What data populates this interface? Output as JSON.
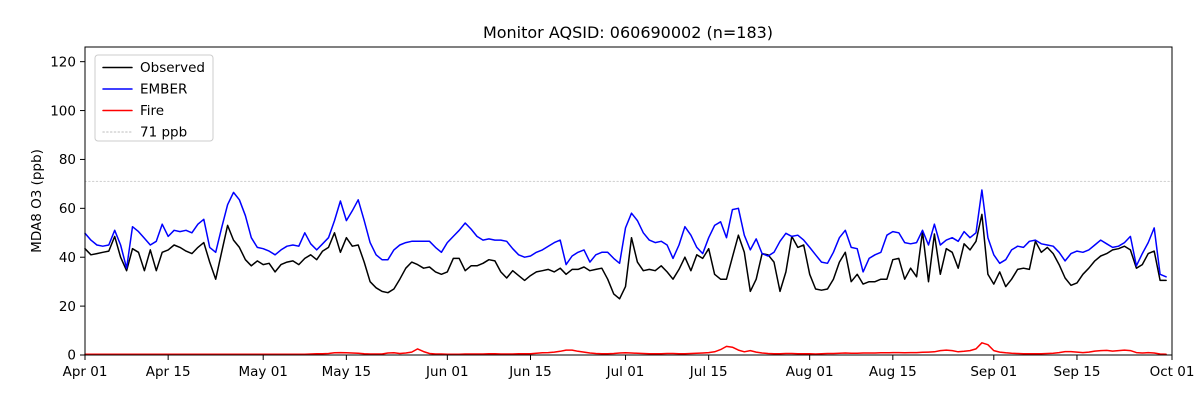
{
  "figure": {
    "title": "Monitor AQSID: 060690002 (n=183)"
  },
  "chart_data": {
    "type": "line",
    "title": "Monitor AQSID: 060690002 (n=183)",
    "xlabel": "",
    "ylabel": "MDA8 O3 (ppb)",
    "n_points": 183,
    "x_start": "Apr 01",
    "x_end": "Oct 01",
    "ylim": [
      0,
      126
    ],
    "yticks": [
      0,
      20,
      40,
      60,
      80,
      100,
      120
    ],
    "xticks": {
      "day_index": [
        0,
        14,
        30,
        44,
        61,
        75,
        91,
        105,
        122,
        136,
        153,
        167,
        183
      ],
      "labels": [
        "Apr 01",
        "Apr 15",
        "May 01",
        "May 15",
        "Jun 01",
        "Jun 15",
        "Jul 01",
        "Jul 15",
        "Aug 01",
        "Aug 15",
        "Sep 01",
        "Sep 15",
        "Oct 01"
      ]
    },
    "grid": false,
    "legend_position": "upper left",
    "threshold": {
      "value": 71,
      "label": "71 ppb",
      "color": "#d3d3d3",
      "style": "dotted"
    },
    "series": [
      {
        "name": "Observed",
        "color": "#000000",
        "values": [
          43.5,
          41,
          41.5,
          42,
          42.5,
          48.5,
          40,
          34.5,
          43.5,
          42,
          34.5,
          43,
          34.5,
          42,
          43,
          45,
          44,
          42.5,
          41.5,
          44,
          46,
          38,
          31,
          42,
          53,
          47,
          44,
          39,
          36.5,
          38.5,
          37,
          37.5,
          34,
          37,
          38,
          38.5,
          37,
          39.5,
          41,
          39,
          42.5,
          44,
          50,
          42,
          48,
          44.5,
          45,
          38,
          30,
          27.5,
          26,
          25.5,
          27,
          31,
          35.5,
          38,
          37,
          35.5,
          36,
          34,
          33,
          34,
          39.5,
          39.5,
          34.5,
          36.5,
          36.5,
          37.5,
          39,
          38.5,
          34,
          31.5,
          34.5,
          32.5,
          30.5,
          32.5,
          34,
          34.5,
          35,
          34,
          35.5,
          33,
          35,
          35,
          36,
          34.5,
          35,
          35.5,
          31,
          25,
          23,
          28,
          48,
          38,
          34.5,
          35,
          34.5,
          36.5,
          34,
          31,
          35,
          40,
          34.5,
          41,
          39.5,
          43.5,
          33,
          31,
          31,
          40,
          49,
          42,
          26,
          31,
          41.5,
          41,
          38,
          26,
          34,
          48.5,
          44,
          45,
          33,
          27,
          26.5,
          27,
          31,
          38,
          42,
          30,
          33,
          29,
          30,
          30,
          31,
          31,
          39,
          39.5,
          31,
          35.5,
          32,
          50.5,
          30,
          49.5,
          33,
          43.5,
          42,
          35.5,
          45.5,
          43,
          46.5,
          57.5,
          33,
          29,
          34,
          28,
          31,
          35,
          35.5,
          35,
          46.5,
          42,
          44,
          41.5,
          37,
          31.5,
          28.5,
          29.5,
          33,
          35.5,
          38.5,
          40.5,
          41.5,
          43,
          43.5,
          44.5,
          43,
          35.5,
          37,
          41.5,
          42.5,
          30.5,
          30.5
        ]
      },
      {
        "name": "EMBER",
        "color": "#0000ff",
        "values": [
          49.8,
          47,
          45,
          44.5,
          45,
          51,
          45,
          35.5,
          52.5,
          50.5,
          47.8,
          45,
          46.5,
          53.5,
          48.5,
          51,
          50.5,
          51,
          50,
          53.5,
          55.5,
          44,
          42,
          52,
          61.5,
          66.5,
          63.5,
          57,
          48,
          44,
          43.5,
          42.5,
          41,
          43,
          44.5,
          45,
          44.5,
          50,
          45.5,
          43,
          45.5,
          48,
          55,
          63,
          55,
          59,
          63.5,
          55,
          46,
          41,
          39,
          39,
          43,
          45,
          46,
          46.5,
          46.5,
          46.5,
          46.5,
          44,
          42,
          46,
          48.5,
          51,
          54,
          51.5,
          48.5,
          47,
          47.5,
          47,
          47,
          46.5,
          43.5,
          41,
          40,
          40.5,
          42,
          43,
          44.5,
          46,
          47,
          37,
          40.5,
          42,
          43,
          38,
          41,
          42,
          42,
          39.5,
          37.5,
          52,
          58,
          55,
          50,
          47,
          46,
          46.5,
          45,
          39.5,
          45,
          52.5,
          49,
          44,
          41.5,
          48,
          53,
          54.5,
          48,
          59.5,
          60,
          49,
          43,
          47.5,
          41.5,
          40.5,
          42,
          46.5,
          49.8,
          48.5,
          49,
          47,
          44,
          41,
          38,
          37.5,
          42,
          48,
          51,
          44,
          43.5,
          34,
          39.5,
          41,
          42,
          49,
          50.5,
          50,
          46,
          45.5,
          46,
          51,
          45,
          53.5,
          45,
          47,
          48,
          46.5,
          50.5,
          48,
          50,
          67.5,
          48,
          41,
          37.5,
          39,
          43,
          44.5,
          44,
          46.5,
          47,
          45.5,
          45,
          44.5,
          42,
          38.5,
          41.5,
          42.5,
          42,
          43,
          45,
          47,
          45.5,
          44,
          44.5,
          46,
          48.5,
          36.5,
          41.5,
          46,
          52,
          33,
          32
        ]
      },
      {
        "name": "Fire",
        "color": "#ff0000",
        "values": [
          0.3,
          0.3,
          0.3,
          0.3,
          0.3,
          0.3,
          0.3,
          0.3,
          0.3,
          0.3,
          0.3,
          0.3,
          0.3,
          0.3,
          0.3,
          0.3,
          0.3,
          0.3,
          0.3,
          0.3,
          0.3,
          0.3,
          0.3,
          0.3,
          0.3,
          0.3,
          0.3,
          0.3,
          0.3,
          0.3,
          0.3,
          0.3,
          0.3,
          0.3,
          0.3,
          0.3,
          0.3,
          0.3,
          0.4,
          0.5,
          0.5,
          0.6,
          0.9,
          1,
          0.9,
          0.8,
          0.7,
          0.5,
          0.4,
          0.4,
          0.4,
          0.8,
          0.9,
          0.6,
          0.8,
          1.2,
          2.5,
          1.4,
          0.6,
          0.4,
          0.4,
          0.3,
          0.3,
          0.3,
          0.4,
          0.4,
          0.4,
          0.4,
          0.5,
          0.5,
          0.4,
          0.4,
          0.4,
          0.5,
          0.5,
          0.5,
          0.7,
          0.9,
          1,
          1.2,
          1.5,
          2,
          2,
          1.5,
          1.2,
          0.8,
          0.6,
          0.5,
          0.5,
          0.6,
          0.8,
          0.9,
          0.8,
          0.7,
          0.6,
          0.5,
          0.5,
          0.5,
          0.6,
          0.6,
          0.5,
          0.5,
          0.6,
          0.7,
          0.8,
          1,
          1.3,
          2.2,
          3.5,
          3.2,
          2,
          1.3,
          1.8,
          1.2,
          0.8,
          0.6,
          0.5,
          0.5,
          0.6,
          0.6,
          0.5,
          0.5,
          0.5,
          0.4,
          0.5,
          0.6,
          0.6,
          0.7,
          0.8,
          0.7,
          0.7,
          0.8,
          0.8,
          0.8,
          0.9,
          0.9,
          1,
          1,
          0.9,
          1,
          1,
          1.1,
          1.2,
          1.3,
          1.8,
          2,
          1.8,
          1.3,
          1.5,
          1.8,
          2.5,
          5,
          4.2,
          1.8,
          1.2,
          0.9,
          0.7,
          0.6,
          0.5,
          0.5,
          0.5,
          0.5,
          0.6,
          0.7,
          1,
          1.4,
          1.4,
          1.2,
          1,
          1.2,
          1.6,
          1.8,
          1.9,
          1.6,
          1.8,
          2,
          1.8,
          1,
          0.8,
          1,
          0.8,
          0.4,
          0.3
        ]
      }
    ]
  }
}
